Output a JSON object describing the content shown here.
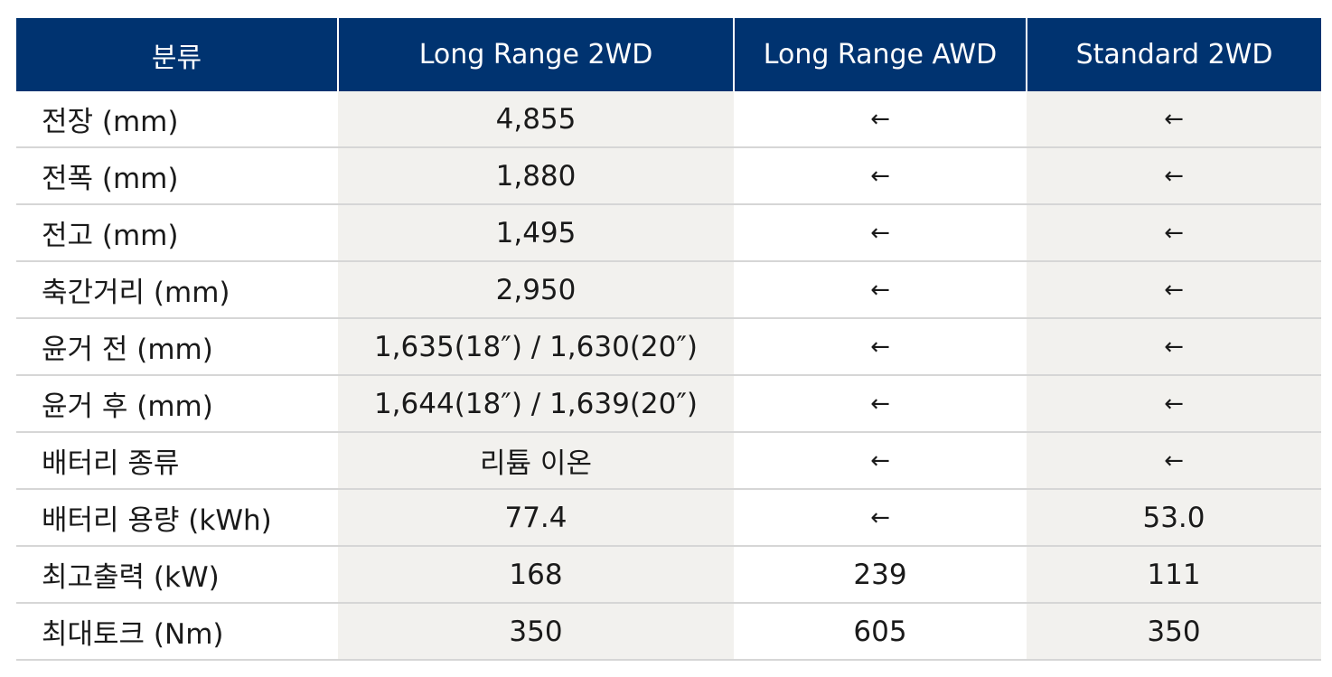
{
  "header": [
    "분류",
    "Long Range 2WD",
    "Long Range AWD",
    "Standard 2WD"
  ],
  "rows": [
    [
      "전장 (mm)",
      "4,855",
      "←",
      "←"
    ],
    [
      "전폭 (mm)",
      "1,880",
      "←",
      "←"
    ],
    [
      "전고 (mm)",
      "1,495",
      "←",
      "←"
    ],
    [
      "축간거리 (mm)",
      "2,950",
      "←",
      "←"
    ],
    [
      "윤거 전 (mm)",
      "1,635(18″) / 1,630(20″)",
      "←",
      "←"
    ],
    [
      "윤거 후 (mm)",
      "1,644(18″) / 1,639(20″)",
      "←",
      "←"
    ],
    [
      "배터리 종류",
      "리튬 이온",
      "←",
      "←"
    ],
    [
      "배터리 용량 (kWh)",
      "77.4",
      "←",
      "53.0"
    ],
    [
      "최고출력 (kW)",
      "168",
      "239",
      "111"
    ],
    [
      "최대토크 (Nm)",
      "350",
      "605",
      "350"
    ]
  ],
  "colors": {
    "header_bg": "#003370",
    "header_text": "#ffffff",
    "shaded_col_bg": "#f2f1ee",
    "row_divider": "#d6d6d6"
  }
}
